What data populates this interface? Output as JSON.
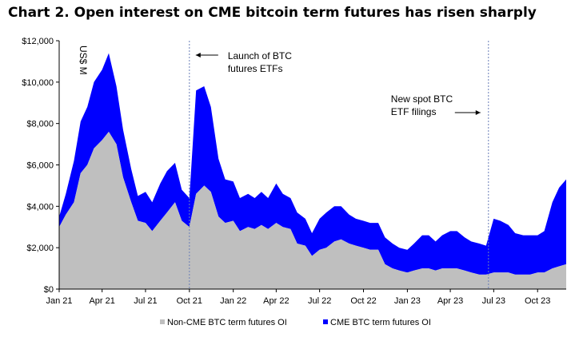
{
  "chart_data": {
    "type": "area",
    "stacked": true,
    "title": "Chart 2. Open interest on CME bitcoin term futures has risen sharply",
    "unit_label": "US$ M",
    "x_range": [
      "2021-01-01",
      "2023-11-30"
    ],
    "ylim": [
      0,
      12000
    ],
    "y_ticks": [
      {
        "value": 0,
        "label": "$0"
      },
      {
        "value": 2000,
        "label": "$2,000"
      },
      {
        "value": 4000,
        "label": "$4,000"
      },
      {
        "value": 6000,
        "label": "$6,000"
      },
      {
        "value": 8000,
        "label": "$8,000"
      },
      {
        "value": 10000,
        "label": "$10,000"
      },
      {
        "value": 12000,
        "label": "$12,000"
      }
    ],
    "x_ticks": [
      {
        "date": "2021-01-01",
        "label": "Jan 21"
      },
      {
        "date": "2021-04-01",
        "label": "Apr 21"
      },
      {
        "date": "2021-07-01",
        "label": "Jul 21"
      },
      {
        "date": "2021-10-01",
        "label": "Oct 21"
      },
      {
        "date": "2022-01-01",
        "label": "Jan 22"
      },
      {
        "date": "2022-04-01",
        "label": "Apr 22"
      },
      {
        "date": "2022-07-01",
        "label": "Jul 22"
      },
      {
        "date": "2022-10-01",
        "label": "Oct 22"
      },
      {
        "date": "2023-01-01",
        "label": "Jan 23"
      },
      {
        "date": "2023-04-01",
        "label": "Apr 23"
      },
      {
        "date": "2023-07-01",
        "label": "Jul 23"
      },
      {
        "date": "2023-10-01",
        "label": "Oct 23"
      }
    ],
    "grid": false,
    "legend_position": "bottom",
    "series": [
      {
        "name": "Non-CME BTC term futures OI",
        "color": "#bfbfbf",
        "points": [
          [
            "2021-01-01",
            3000
          ],
          [
            "2021-01-15",
            3600
          ],
          [
            "2021-02-01",
            4200
          ],
          [
            "2021-02-15",
            5600
          ],
          [
            "2021-03-01",
            6000
          ],
          [
            "2021-03-15",
            6800
          ],
          [
            "2021-04-01",
            7200
          ],
          [
            "2021-04-15",
            7600
          ],
          [
            "2021-05-01",
            7000
          ],
          [
            "2021-05-15",
            5400
          ],
          [
            "2021-06-01",
            4200
          ],
          [
            "2021-06-15",
            3300
          ],
          [
            "2021-07-01",
            3200
          ],
          [
            "2021-07-15",
            2800
          ],
          [
            "2021-08-01",
            3300
          ],
          [
            "2021-08-15",
            3700
          ],
          [
            "2021-09-01",
            4200
          ],
          [
            "2021-09-15",
            3300
          ],
          [
            "2021-10-01",
            3000
          ],
          [
            "2021-10-15",
            4600
          ],
          [
            "2021-11-01",
            5000
          ],
          [
            "2021-11-15",
            4700
          ],
          [
            "2021-12-01",
            3500
          ],
          [
            "2021-12-15",
            3200
          ],
          [
            "2022-01-01",
            3300
          ],
          [
            "2022-01-15",
            2800
          ],
          [
            "2022-02-01",
            3000
          ],
          [
            "2022-02-15",
            2900
          ],
          [
            "2022-03-01",
            3100
          ],
          [
            "2022-03-15",
            2900
          ],
          [
            "2022-04-01",
            3200
          ],
          [
            "2022-04-15",
            3000
          ],
          [
            "2022-05-01",
            2900
          ],
          [
            "2022-05-15",
            2200
          ],
          [
            "2022-06-01",
            2100
          ],
          [
            "2022-06-15",
            1600
          ],
          [
            "2022-07-01",
            1900
          ],
          [
            "2022-07-15",
            2000
          ],
          [
            "2022-08-01",
            2300
          ],
          [
            "2022-08-15",
            2400
          ],
          [
            "2022-09-01",
            2200
          ],
          [
            "2022-09-15",
            2100
          ],
          [
            "2022-10-01",
            2000
          ],
          [
            "2022-10-15",
            1900
          ],
          [
            "2022-11-01",
            1900
          ],
          [
            "2022-11-15",
            1200
          ],
          [
            "2022-12-01",
            1000
          ],
          [
            "2022-12-15",
            900
          ],
          [
            "2023-01-01",
            800
          ],
          [
            "2023-01-15",
            900
          ],
          [
            "2023-02-01",
            1000
          ],
          [
            "2023-02-15",
            1000
          ],
          [
            "2023-03-01",
            900
          ],
          [
            "2023-03-15",
            1000
          ],
          [
            "2023-04-01",
            1000
          ],
          [
            "2023-04-15",
            1000
          ],
          [
            "2023-05-01",
            900
          ],
          [
            "2023-05-15",
            800
          ],
          [
            "2023-06-01",
            700
          ],
          [
            "2023-06-15",
            700
          ],
          [
            "2023-07-01",
            800
          ],
          [
            "2023-07-15",
            800
          ],
          [
            "2023-08-01",
            800
          ],
          [
            "2023-08-15",
            700
          ],
          [
            "2023-09-01",
            700
          ],
          [
            "2023-09-15",
            700
          ],
          [
            "2023-10-01",
            800
          ],
          [
            "2023-10-15",
            800
          ],
          [
            "2023-11-01",
            1000
          ],
          [
            "2023-11-15",
            1100
          ],
          [
            "2023-11-30",
            1200
          ]
        ]
      },
      {
        "name": "CME BTC term futures OI",
        "color": "#0000ff",
        "points": [
          [
            "2021-01-01",
            500
          ],
          [
            "2021-01-15",
            1000
          ],
          [
            "2021-02-01",
            2000
          ],
          [
            "2021-02-15",
            2500
          ],
          [
            "2021-03-01",
            2800
          ],
          [
            "2021-03-15",
            3200
          ],
          [
            "2021-04-01",
            3400
          ],
          [
            "2021-04-15",
            3800
          ],
          [
            "2021-05-01",
            2800
          ],
          [
            "2021-05-15",
            2300
          ],
          [
            "2021-06-01",
            1600
          ],
          [
            "2021-06-15",
            1200
          ],
          [
            "2021-07-01",
            1500
          ],
          [
            "2021-07-15",
            1400
          ],
          [
            "2021-08-01",
            1800
          ],
          [
            "2021-08-15",
            2000
          ],
          [
            "2021-09-01",
            1900
          ],
          [
            "2021-09-15",
            1500
          ],
          [
            "2021-10-01",
            1400
          ],
          [
            "2021-10-15",
            5000
          ],
          [
            "2021-11-01",
            4800
          ],
          [
            "2021-11-15",
            4100
          ],
          [
            "2021-12-01",
            2800
          ],
          [
            "2021-12-15",
            2100
          ],
          [
            "2022-01-01",
            1900
          ],
          [
            "2022-01-15",
            1600
          ],
          [
            "2022-02-01",
            1600
          ],
          [
            "2022-02-15",
            1500
          ],
          [
            "2022-03-01",
            1600
          ],
          [
            "2022-03-15",
            1500
          ],
          [
            "2022-04-01",
            1900
          ],
          [
            "2022-04-15",
            1600
          ],
          [
            "2022-05-01",
            1500
          ],
          [
            "2022-05-15",
            1500
          ],
          [
            "2022-06-01",
            1300
          ],
          [
            "2022-06-15",
            1100
          ],
          [
            "2022-07-01",
            1500
          ],
          [
            "2022-07-15",
            1700
          ],
          [
            "2022-08-01",
            1700
          ],
          [
            "2022-08-15",
            1600
          ],
          [
            "2022-09-01",
            1400
          ],
          [
            "2022-09-15",
            1300
          ],
          [
            "2022-10-01",
            1300
          ],
          [
            "2022-10-15",
            1300
          ],
          [
            "2022-11-01",
            1300
          ],
          [
            "2022-11-15",
            1300
          ],
          [
            "2022-12-01",
            1200
          ],
          [
            "2022-12-15",
            1100
          ],
          [
            "2023-01-01",
            1100
          ],
          [
            "2023-01-15",
            1300
          ],
          [
            "2023-02-01",
            1600
          ],
          [
            "2023-02-15",
            1600
          ],
          [
            "2023-03-01",
            1400
          ],
          [
            "2023-03-15",
            1600
          ],
          [
            "2023-04-01",
            1800
          ],
          [
            "2023-04-15",
            1800
          ],
          [
            "2023-05-01",
            1600
          ],
          [
            "2023-05-15",
            1500
          ],
          [
            "2023-06-01",
            1500
          ],
          [
            "2023-06-15",
            1400
          ],
          [
            "2023-07-01",
            2600
          ],
          [
            "2023-07-15",
            2500
          ],
          [
            "2023-08-01",
            2300
          ],
          [
            "2023-08-15",
            2000
          ],
          [
            "2023-09-01",
            1900
          ],
          [
            "2023-09-15",
            1900
          ],
          [
            "2023-10-01",
            1800
          ],
          [
            "2023-10-15",
            2000
          ],
          [
            "2023-11-01",
            3200
          ],
          [
            "2023-11-15",
            3800
          ],
          [
            "2023-11-30",
            4100
          ]
        ]
      }
    ],
    "events": [
      {
        "date": "2021-10-01",
        "label_lines": [
          "Launch of BTC",
          "futures ETFs"
        ],
        "arrow": "left"
      },
      {
        "date": "2023-06-20",
        "label_lines": [
          "New spot BTC",
          "ETF filings"
        ],
        "arrow": "right"
      }
    ]
  }
}
